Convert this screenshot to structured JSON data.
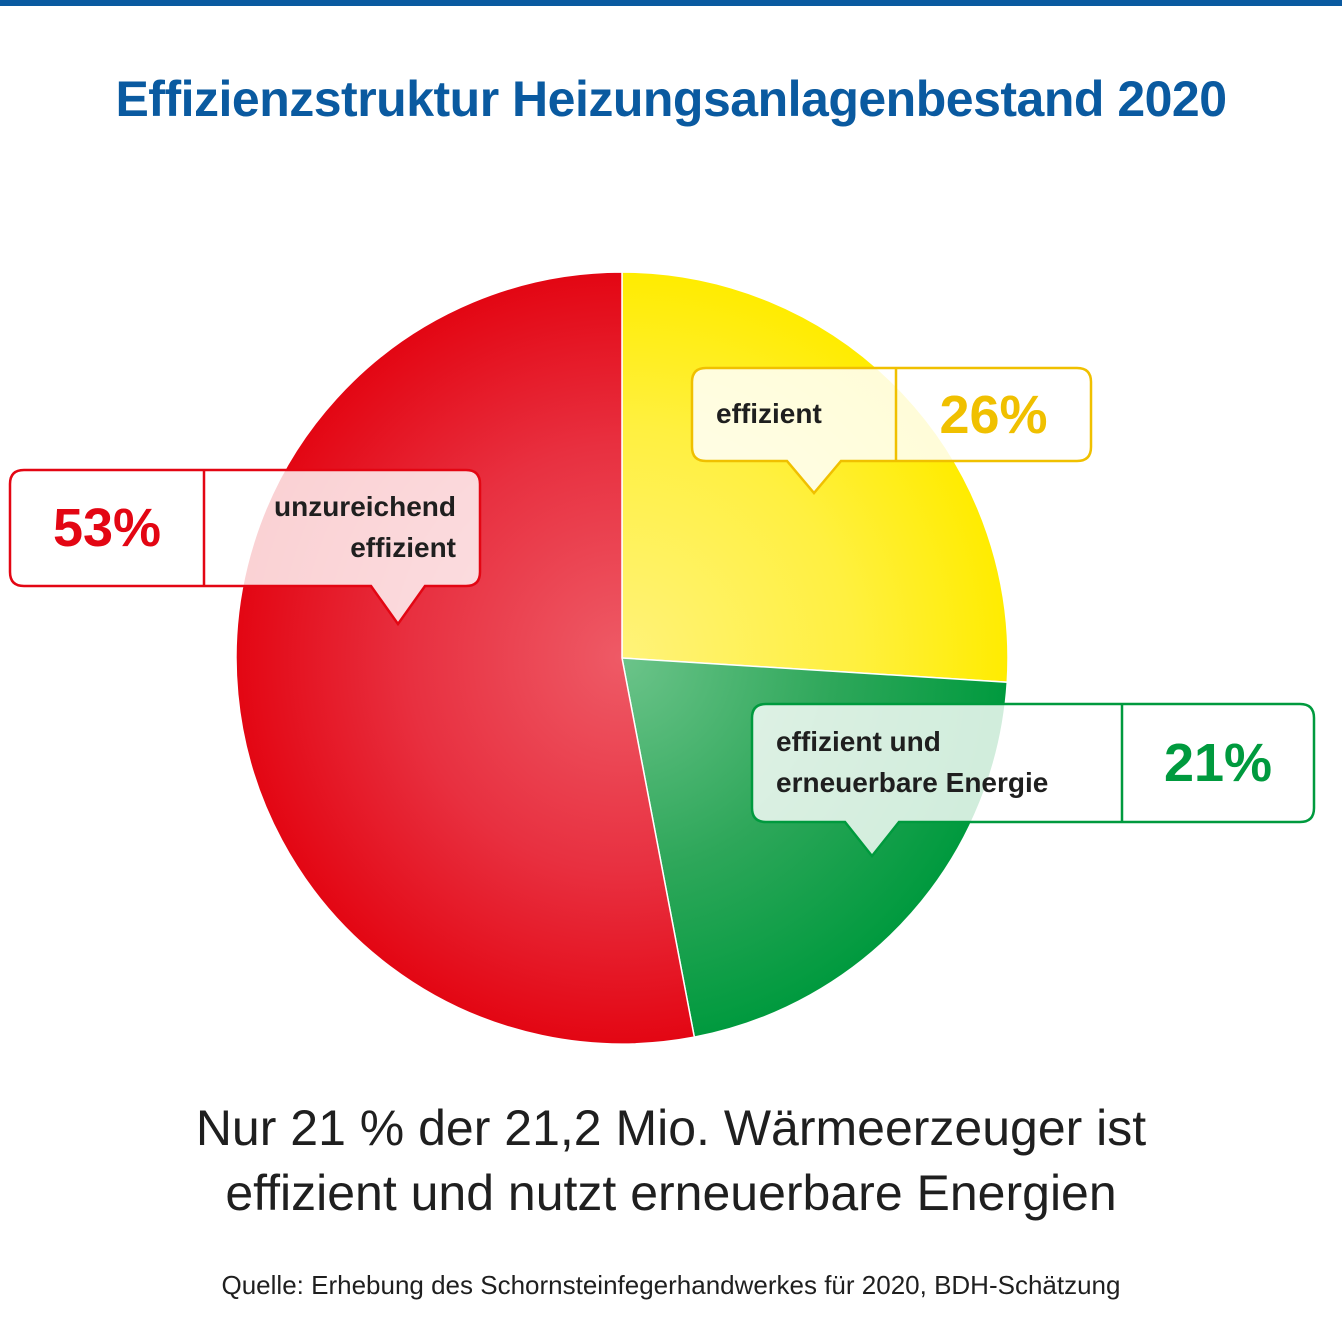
{
  "title": "Effizienzstruktur Heizungsanlagenbestand 2020",
  "colors": {
    "title_blue": "#0a5aa0",
    "red": "#e30613",
    "yellow": "#ffec00",
    "yellow_text": "#f0c000",
    "green": "#009a3e"
  },
  "chart_data": {
    "type": "pie",
    "start": "12 o'clock, clockwise",
    "slices": [
      {
        "label": "effizient",
        "value": 26,
        "display": "26%",
        "color": "#ffec00"
      },
      {
        "label": "effizient und erneuerbare Energie",
        "display": "21%",
        "value": 21,
        "color": "#009a3e"
      },
      {
        "label": "unzureichend effizient",
        "value": 53,
        "display": "53%",
        "color": "#e30613"
      }
    ],
    "callouts": {
      "yellow": {
        "label": "effizient",
        "percent": "26%"
      },
      "green": {
        "label_line1": "effizient und",
        "label_line2": "erneuerbare Energie",
        "percent": "21%"
      },
      "red": {
        "percent": "53%",
        "label_line1": "unzureichend",
        "label_line2": "effizient"
      }
    }
  },
  "headline": {
    "line1": "Nur 21 % der 21,2 Mio. Wärmeerzeuger ist",
    "line2": "effizient und nutzt erneuerbare Energien"
  },
  "source": "Quelle: Erhebung des Schornsteinfegerhandwerkes für 2020, BDH-Schätzung"
}
